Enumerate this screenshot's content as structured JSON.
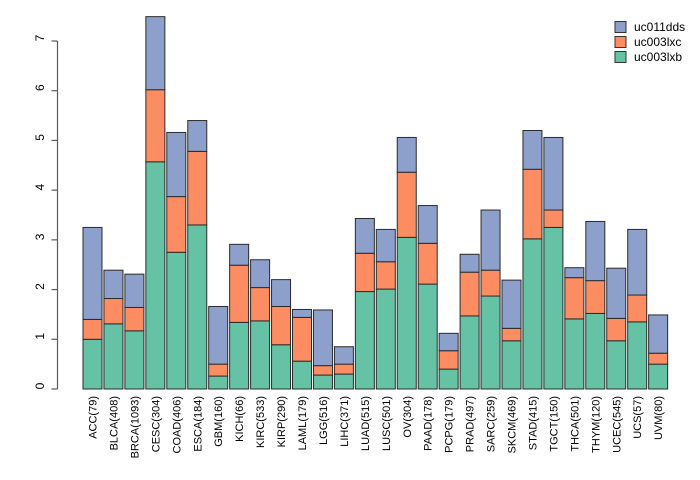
{
  "chart_data": {
    "type": "bar",
    "stacked": true,
    "title": "",
    "xlabel": "",
    "ylabel": "",
    "ylim": [
      0,
      7
    ],
    "yticks": [
      0,
      1,
      2,
      3,
      4,
      5,
      6,
      7
    ],
    "grid": false,
    "legend_position": "top-right",
    "legend_order_top_to_bottom": [
      "uc011dds",
      "uc003lxc",
      "uc003lxb"
    ],
    "categories": [
      "ACC(79)",
      "BLCA(408)",
      "BRCA(1093)",
      "CESC(304)",
      "COAD(406)",
      "ESCA(184)",
      "GBM(160)",
      "KICH(66)",
      "KIRC(533)",
      "KIRP(290)",
      "LAML(179)",
      "LGG(516)",
      "LIHC(371)",
      "LUAD(515)",
      "LUSC(501)",
      "OV(304)",
      "PAAD(178)",
      "PCPG(179)",
      "PRAD(497)",
      "SARC(259)",
      "SKCM(469)",
      "STAD(415)",
      "TGCT(150)",
      "THCA(501)",
      "THYM(120)",
      "UCEC(545)",
      "UCS(57)",
      "UVM(80)"
    ],
    "series": [
      {
        "name": "uc003lxb",
        "color": "#66C2A5",
        "values": [
          1.0,
          1.31,
          1.17,
          4.57,
          2.75,
          3.3,
          0.26,
          1.34,
          1.37,
          0.89,
          0.56,
          0.28,
          0.3,
          1.96,
          2.01,
          3.05,
          2.11,
          0.4,
          1.47,
          1.87,
          0.97,
          3.02,
          3.25,
          1.41,
          1.52,
          0.97,
          1.35,
          0.5
        ]
      },
      {
        "name": "uc003lxc",
        "color": "#FC8D62",
        "values": [
          0.4,
          0.51,
          0.47,
          1.45,
          1.12,
          1.48,
          0.24,
          1.15,
          0.67,
          0.77,
          0.88,
          0.19,
          0.2,
          0.77,
          0.55,
          1.31,
          0.82,
          0.37,
          0.88,
          0.52,
          0.25,
          1.4,
          0.35,
          0.83,
          0.66,
          0.45,
          0.54,
          0.22
        ]
      },
      {
        "name": "uc011dds",
        "color": "#8DA0CB",
        "values": [
          1.85,
          0.57,
          0.67,
          1.47,
          1.29,
          0.62,
          1.16,
          0.42,
          0.56,
          0.54,
          0.16,
          1.12,
          0.35,
          0.7,
          0.65,
          0.7,
          0.76,
          0.35,
          0.36,
          1.21,
          0.97,
          0.78,
          1.46,
          0.2,
          1.19,
          1.01,
          1.32,
          0.77
        ]
      }
    ],
    "colors": {
      "bar_border": "#2b2b2b",
      "axis": "#5a5a5a",
      "text": "#000000"
    }
  }
}
